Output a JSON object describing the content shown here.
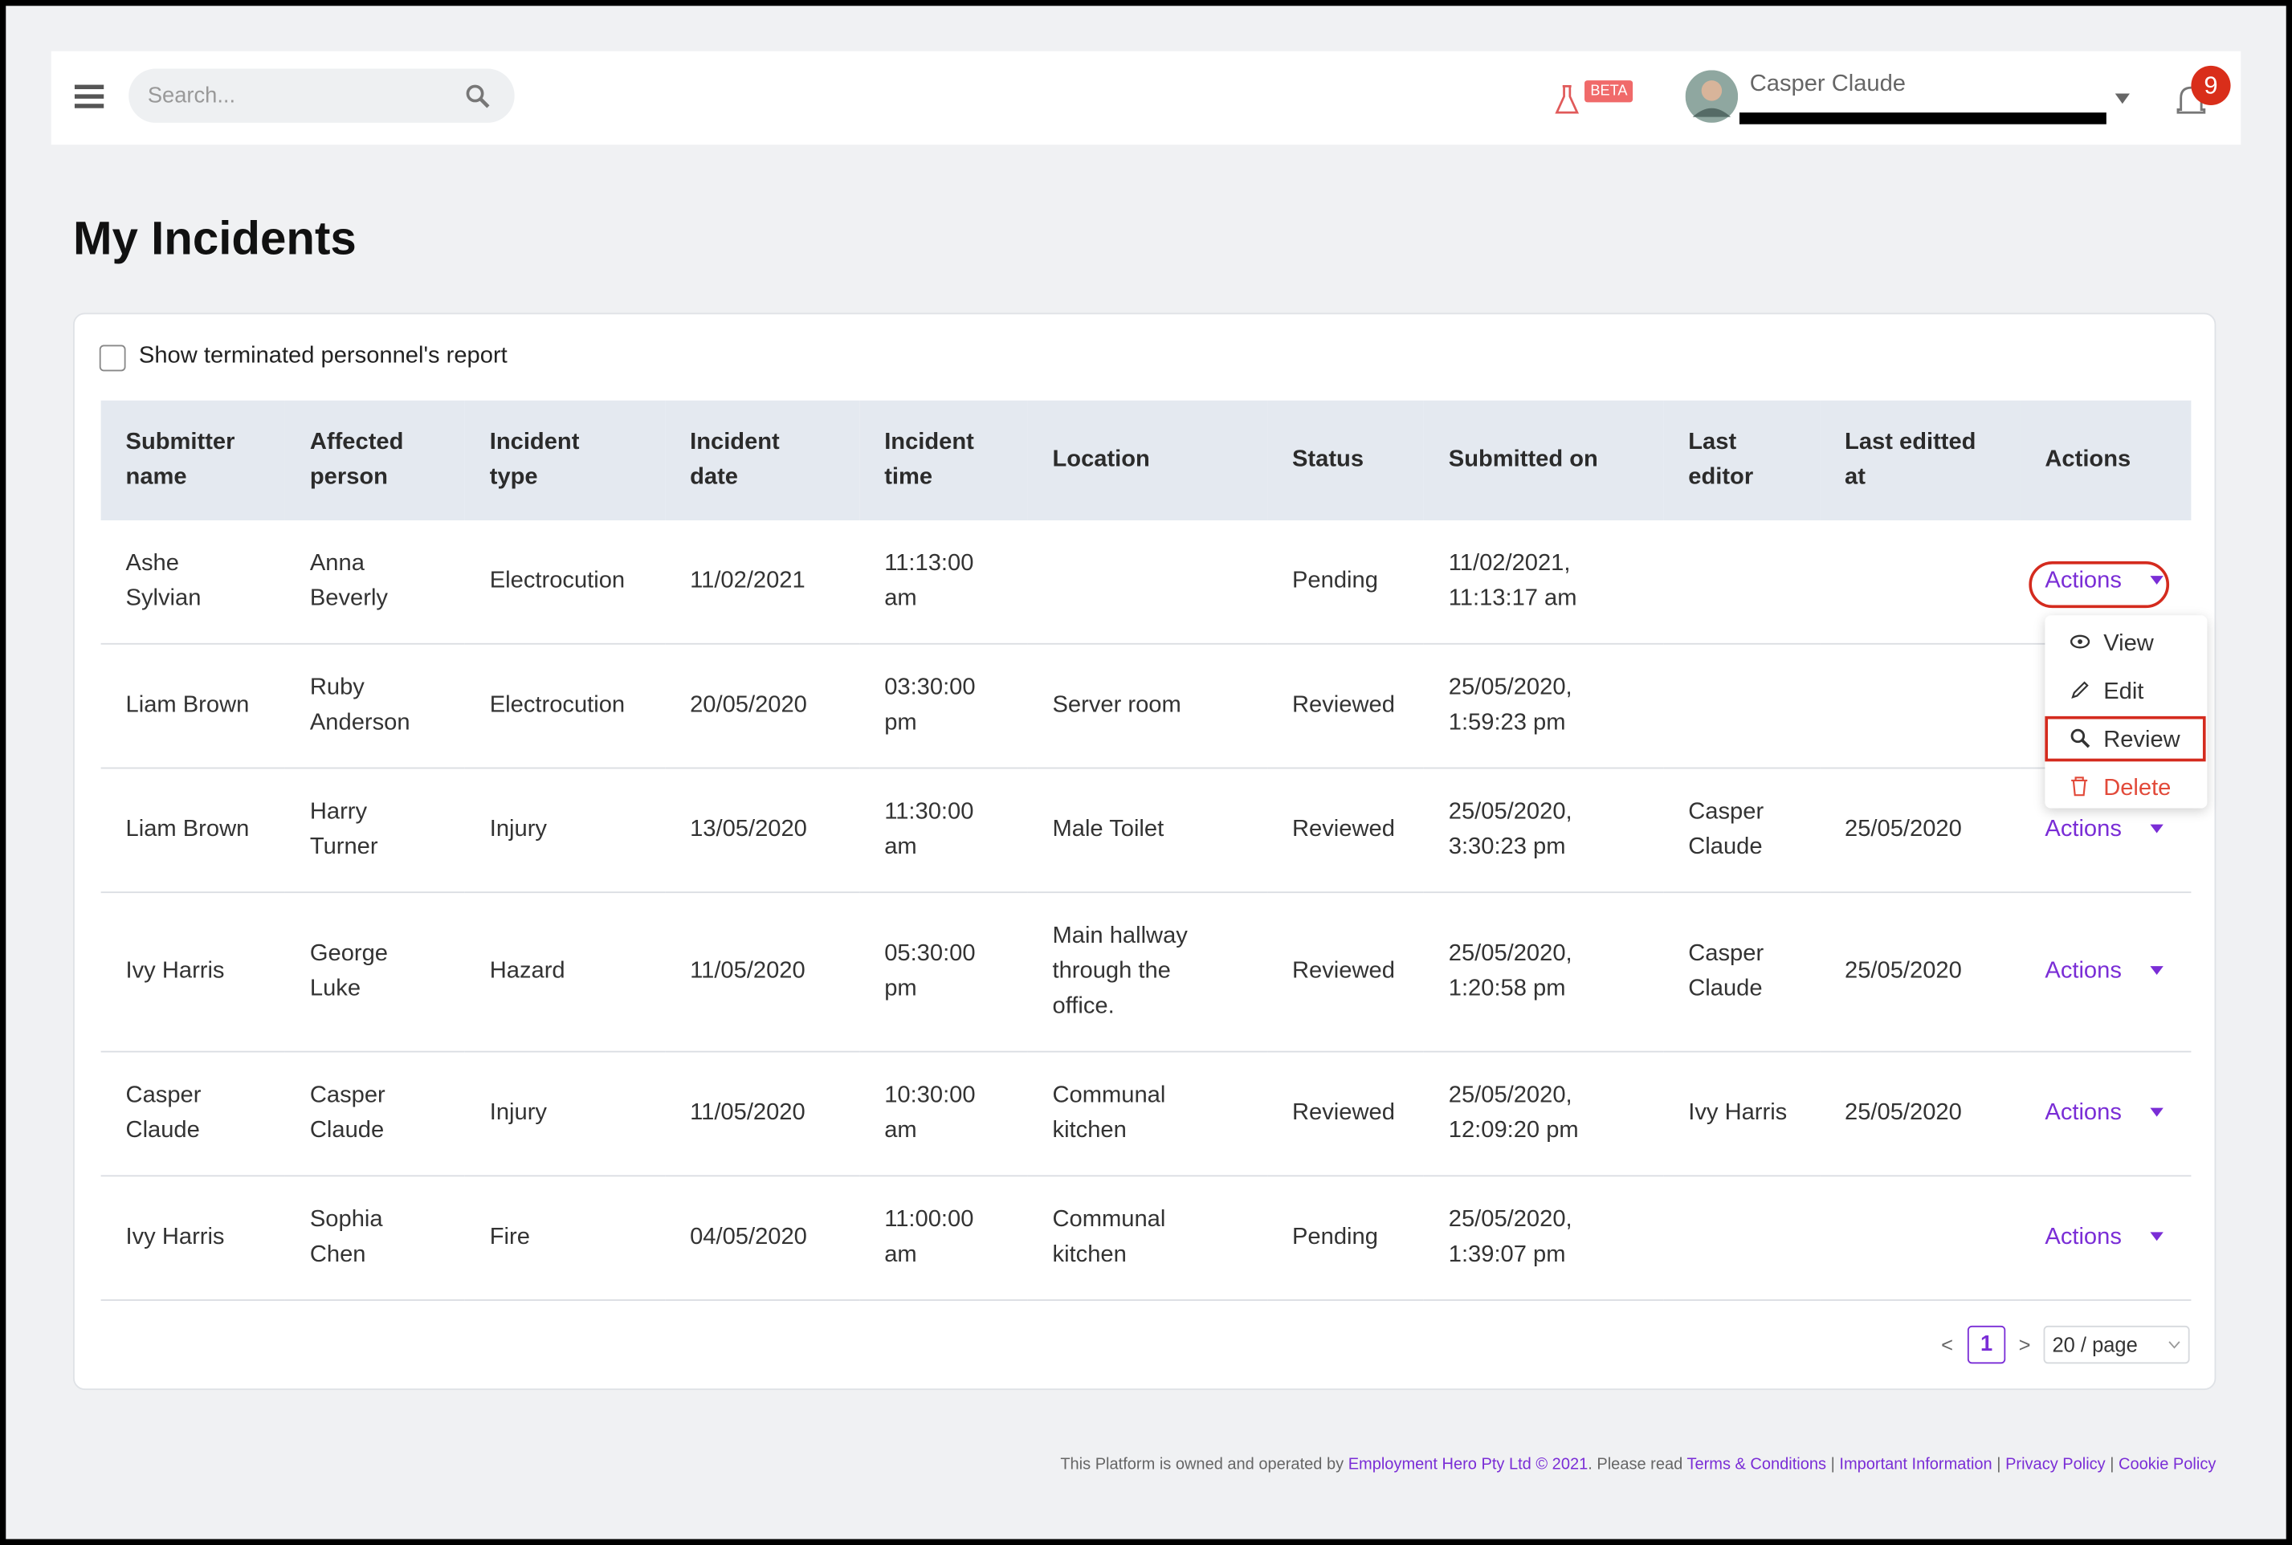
{
  "header": {
    "search_placeholder": "Search...",
    "beta_badge": "BETA",
    "user_name": "Casper Claude",
    "notification_count": 9
  },
  "page_title": "My Incidents",
  "filter": {
    "checkbox_label": "Show terminated personnel's report"
  },
  "table": {
    "columns": [
      "Submitter\nname",
      "Affected\nperson",
      "Incident\ntype",
      "Incident\ndate",
      "Incident\ntime",
      "Location",
      "Status",
      "Submitted on",
      "Last\neditor",
      "Last editted\nat",
      "Actions"
    ],
    "action_label": "Actions",
    "rows": [
      [
        "Ashe\nSylvian",
        "Anna\nBeverly",
        "Electrocution",
        "11/02/2021",
        "11:13:00\nam",
        null,
        "Pending",
        "11/02/2021,\n11:13:17 am",
        null,
        null
      ],
      [
        "Liam Brown",
        "Ruby\nAnderson",
        "Electrocution",
        "20/05/2020",
        "03:30:00\npm",
        "Server room",
        "Reviewed",
        "25/05/2020,\n1:59:23 pm",
        null,
        null
      ],
      [
        "Liam Brown",
        "Harry\nTurner",
        "Injury",
        "13/05/2020",
        "11:30:00\nam",
        "Male Toilet",
        "Reviewed",
        "25/05/2020,\n3:30:23 pm",
        "Casper\nClaude",
        "25/05/2020"
      ],
      [
        "Ivy Harris",
        "George\nLuke",
        "Hazard",
        "11/05/2020",
        "05:30:00\npm",
        "Main hallway\nthrough the\noffice.",
        "Reviewed",
        "25/05/2020,\n1:20:58 pm",
        "Casper\nClaude",
        "25/05/2020"
      ],
      [
        "Casper\nClaude",
        "Casper\nClaude",
        "Injury",
        "11/05/2020",
        "10:30:00\nam",
        "Communal\nkitchen",
        "Reviewed",
        "25/05/2020,\n12:09:20 pm",
        "Ivy Harris",
        "25/05/2020"
      ],
      [
        "Ivy Harris",
        "Sophia\nChen",
        "Fire",
        "04/05/2020",
        "11:00:00\nam",
        "Communal\nkitchen",
        "Pending",
        "25/05/2020,\n1:39:07 pm",
        null,
        null
      ]
    ]
  },
  "action_menu": {
    "items": [
      "View",
      "Edit",
      "Review",
      "Delete"
    ]
  },
  "pagination": {
    "prev": "<",
    "current_page": 1,
    "next": ">",
    "page_size": "20 / page"
  },
  "footer": {
    "text_1": "This Platform is owned and operated by ",
    "company": "Employment Hero Pty Ltd © 2021",
    "text_2": ". Please read ",
    "separator": "|",
    "links": [
      "Terms & Conditions",
      "Important Information",
      "Privacy Policy",
      "Cookie Policy"
    ]
  }
}
